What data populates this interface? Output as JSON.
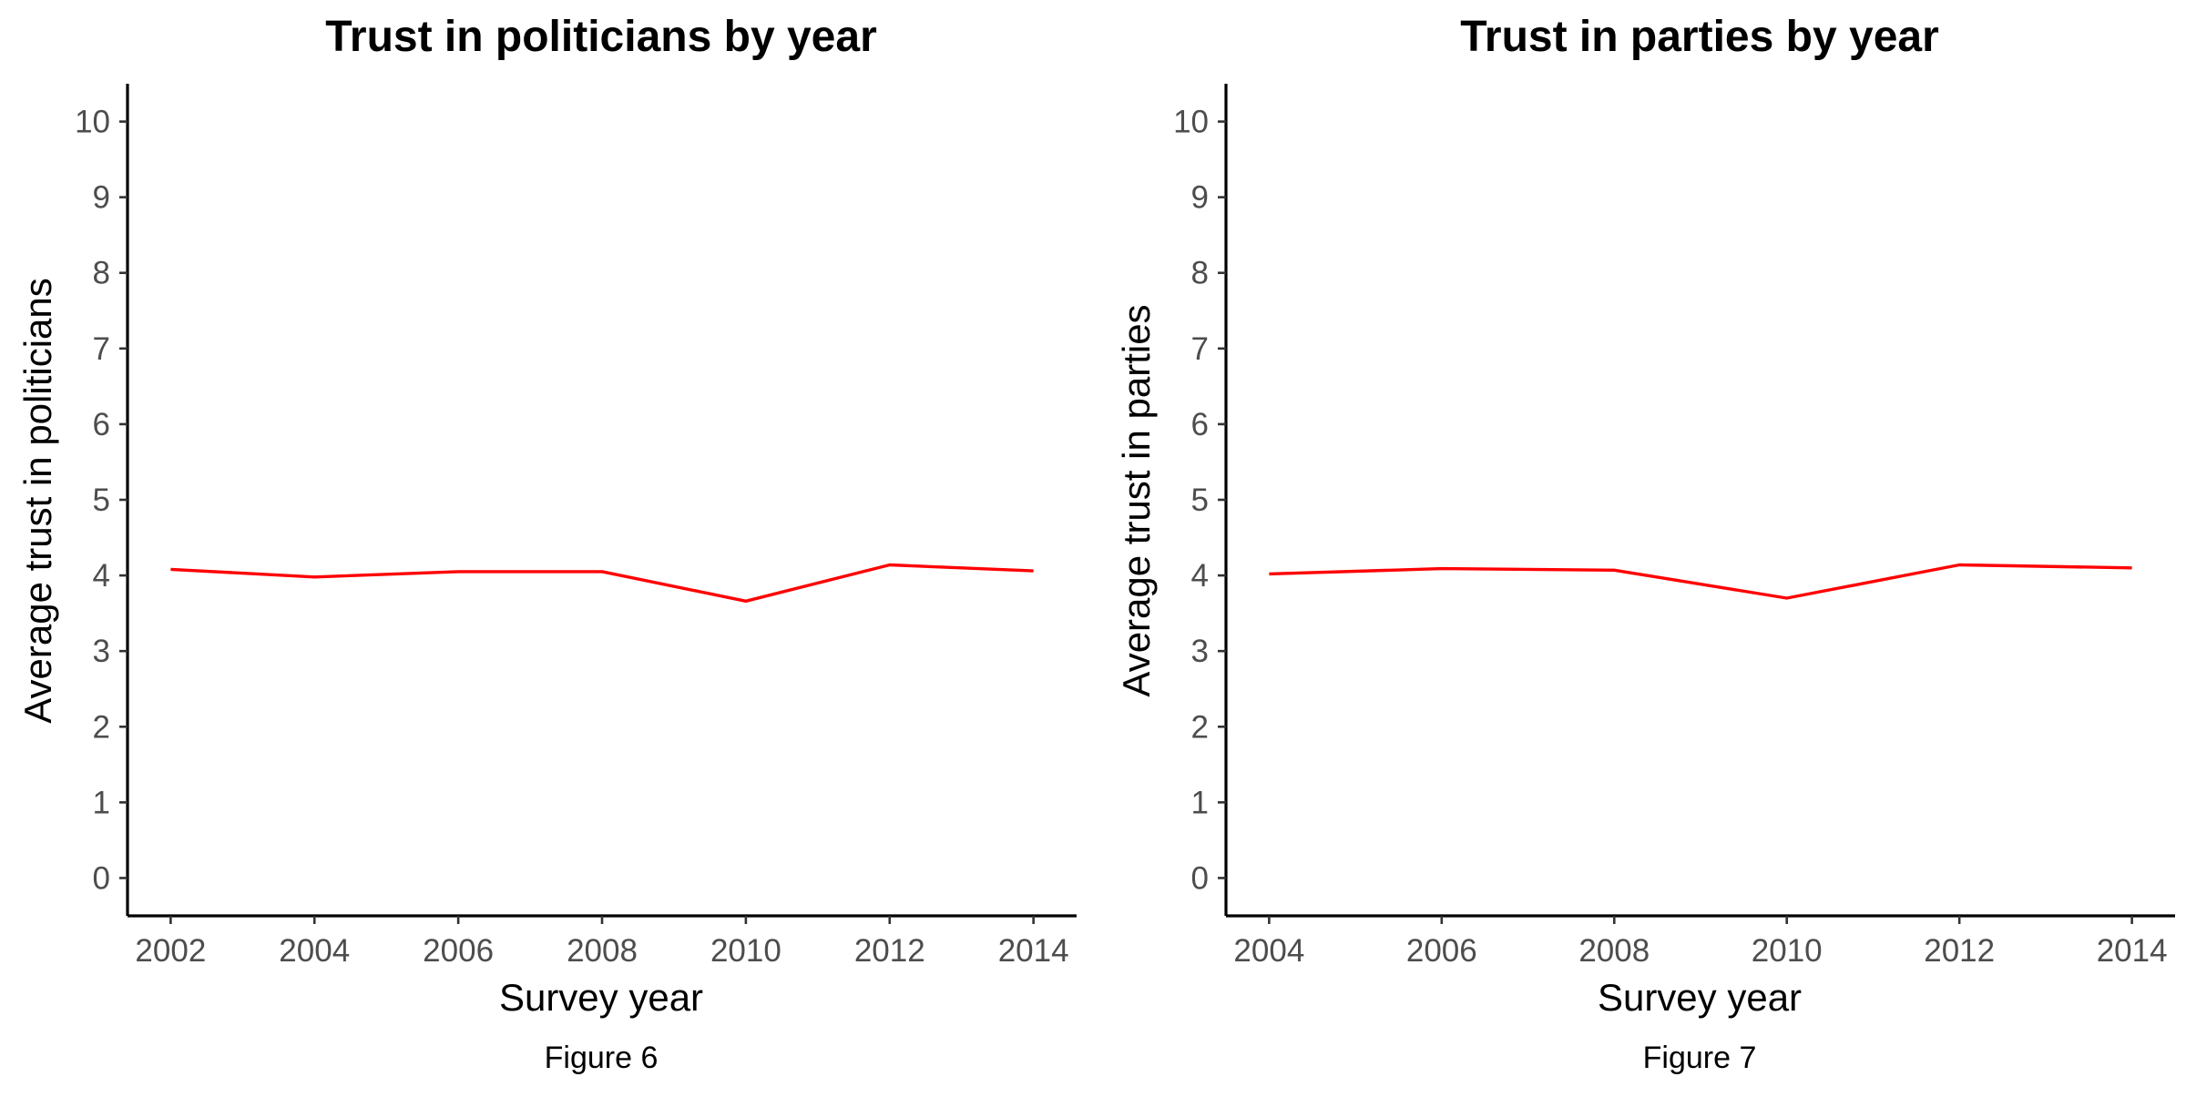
{
  "colors": {
    "line": "#ff0000",
    "axis": "#000000",
    "tick_text": "#4d4d4d"
  },
  "chart_data": [
    {
      "type": "line",
      "title": "Trust in politicians by year",
      "xlabel": "Survey year",
      "ylabel": "Average trust in politicians",
      "caption": "Figure 6",
      "x": [
        2002,
        2004,
        2006,
        2008,
        2010,
        2012,
        2014
      ],
      "values": [
        4.08,
        3.98,
        4.05,
        4.05,
        3.66,
        4.14,
        4.06
      ],
      "xticks": [
        "2002",
        "2004",
        "2006",
        "2008",
        "2010",
        "2012",
        "2014"
      ],
      "yticks": [
        "0",
        "1",
        "2",
        "3",
        "4",
        "5",
        "6",
        "7",
        "8",
        "9",
        "10"
      ],
      "xlim": [
        2001.4,
        2014.6
      ],
      "ylim": [
        -0.5,
        10.5
      ],
      "grid": false
    },
    {
      "type": "line",
      "title": "Trust in parties by year",
      "xlabel": "Survey year",
      "ylabel": "Average trust in parties",
      "caption": "Figure 7",
      "x": [
        2004,
        2006,
        2008,
        2010,
        2012,
        2014
      ],
      "values": [
        4.02,
        4.09,
        4.07,
        3.7,
        4.14,
        4.1
      ],
      "xticks": [
        "2004",
        "2006",
        "2008",
        "2010",
        "2012",
        "2014"
      ],
      "yticks": [
        "0",
        "1",
        "2",
        "3",
        "4",
        "5",
        "6",
        "7",
        "8",
        "9",
        "10"
      ],
      "xlim": [
        2003.5,
        2014.5
      ],
      "ylim": [
        -0.5,
        10.5
      ],
      "grid": false
    }
  ]
}
